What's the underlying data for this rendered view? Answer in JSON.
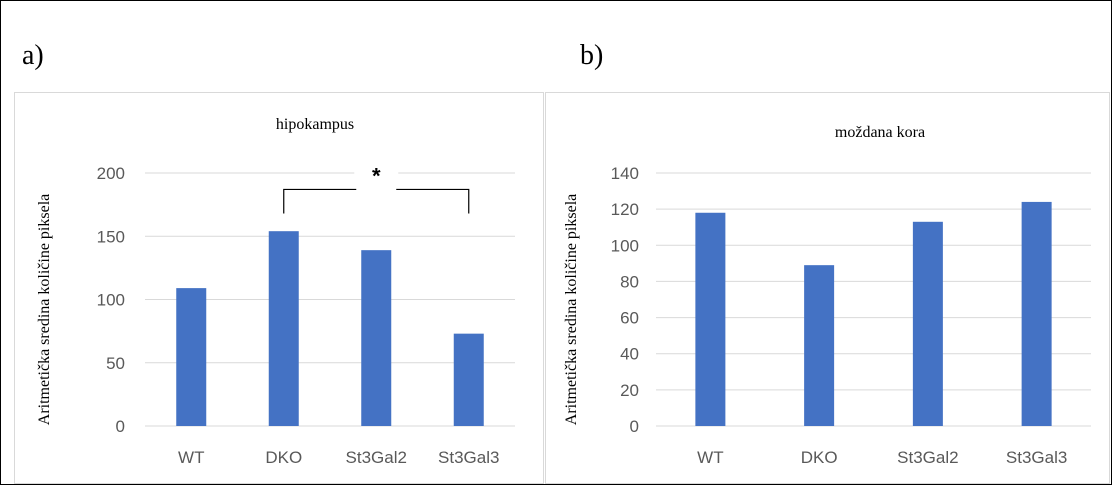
{
  "panels": {
    "a_label": "a)",
    "b_label": "b)"
  },
  "colors": {
    "bar": "#4472c4",
    "grid": "#d9d9d9",
    "tick_text": "#595959",
    "bracket": "#000000"
  },
  "chart_data": [
    {
      "type": "bar",
      "title": "hipokampus",
      "xlabel": "",
      "ylabel": "Aritmetička sredina količine piksela",
      "categories": [
        "WT",
        "DKO",
        "St3Gal2",
        "St3Gal3"
      ],
      "values": [
        109,
        154,
        139,
        73
      ],
      "ylim": [
        0,
        200
      ],
      "yticks": [
        0,
        50,
        100,
        150,
        200
      ],
      "grid": true,
      "legend": "none",
      "annotation": {
        "text": "*",
        "from_category": "DKO",
        "to_category": "St3Gal3",
        "bracket_level": 187,
        "bracket_drop": 168
      }
    },
    {
      "type": "bar",
      "title": "moždana kora",
      "xlabel": "",
      "ylabel": "Aritmetička sredina količine piksela",
      "categories": [
        "WT",
        "DKO",
        "St3Gal2",
        "St3Gal3"
      ],
      "values": [
        118,
        89,
        113,
        124
      ],
      "ylim": [
        0,
        140
      ],
      "yticks": [
        0,
        20,
        40,
        60,
        80,
        100,
        120,
        140
      ],
      "grid": true,
      "legend": "none"
    }
  ]
}
